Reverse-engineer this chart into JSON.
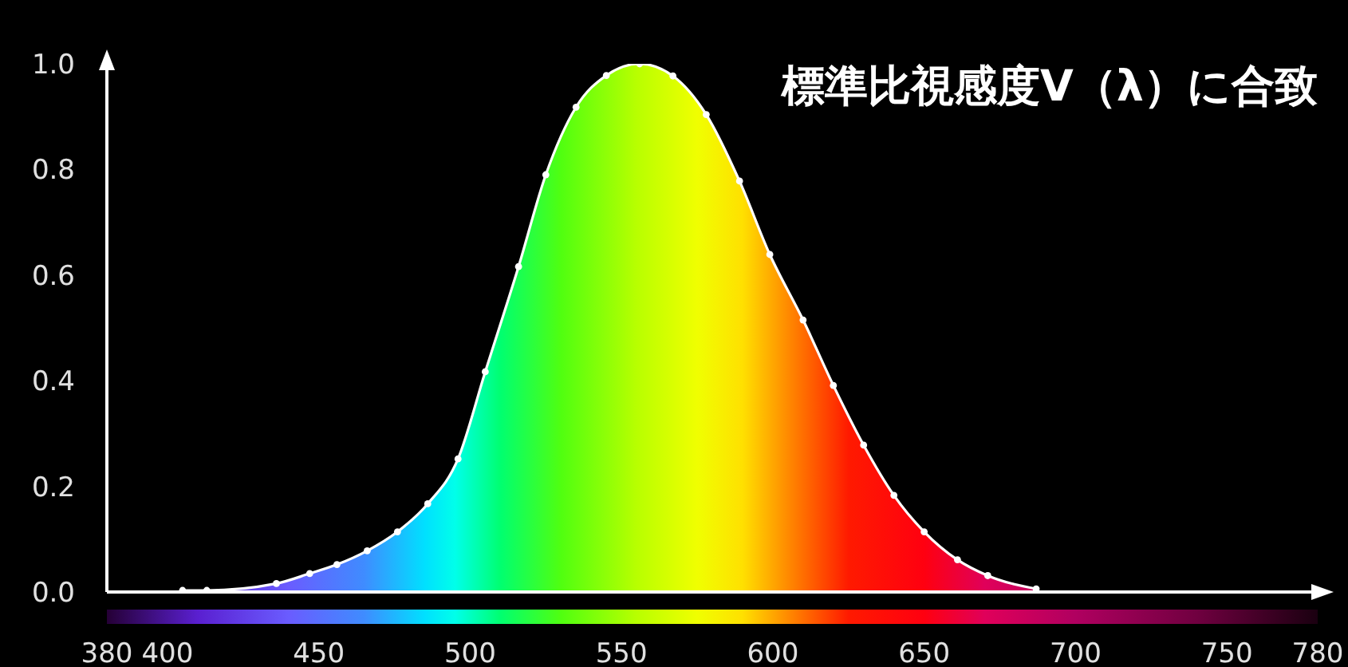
{
  "chart_data": {
    "type": "area",
    "title": "標準比視感度V（λ）に合致",
    "x": [
      405,
      413,
      436,
      447,
      456,
      466,
      476,
      486,
      496,
      505,
      516,
      525,
      535,
      545,
      556,
      567,
      578,
      589,
      599,
      610,
      620,
      630,
      640,
      650,
      661,
      671,
      687
    ],
    "series": [
      {
        "color": "#ffffff",
        "values": [
          0.003,
          0.003,
          0.016,
          0.035,
          0.052,
          0.078,
          0.114,
          0.167,
          0.252,
          0.417,
          0.616,
          0.79,
          0.918,
          0.978,
          1.0,
          0.977,
          0.904,
          0.778,
          0.639,
          0.515,
          0.391,
          0.278,
          0.183,
          0.114,
          0.061,
          0.031,
          0.006
        ]
      }
    ],
    "xlim": [
      380,
      780
    ],
    "xticks": [
      380,
      400,
      450,
      500,
      550,
      600,
      650,
      700,
      750,
      780
    ],
    "ylim": [
      0,
      1
    ],
    "yticks": [
      {
        "value": 0,
        "label": "0.0"
      },
      {
        "value": 0.2,
        "label": "0.2"
      },
      {
        "value": 0.4,
        "label": "0.4"
      },
      {
        "value": 0.6,
        "label": "0.6"
      },
      {
        "value": 0.8,
        "label": "0.8"
      },
      {
        "value": 1,
        "label": "1.0"
      }
    ],
    "marker": "circle"
  }
}
